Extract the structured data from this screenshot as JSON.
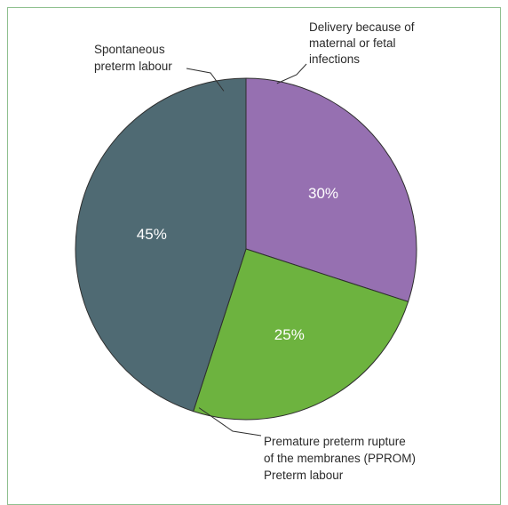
{
  "chart_data": {
    "type": "pie",
    "title": "",
    "slices": [
      {
        "label": "Delivery because of maternal or fetal infections",
        "value": 30,
        "value_label": "30%",
        "color": "#9670b1"
      },
      {
        "label": "Premature preterm rupture of the membranes (PPROM) Preterm labour",
        "value": 25,
        "value_label": "25%",
        "color": "#6db33f"
      },
      {
        "label": "Spontaneous preterm labour",
        "value": 45,
        "value_label": "45%",
        "color": "#4f6a73"
      }
    ],
    "annotations": [
      {
        "lines": [
          "Delivery because of",
          "maternal or fetal",
          "infections"
        ]
      },
      {
        "lines": [
          "Premature preterm rupture",
          "of the membranes (PPROM)",
          "Preterm labour"
        ]
      },
      {
        "lines": [
          "Spontaneous",
          "preterm labour"
        ]
      }
    ],
    "legend": "none",
    "start_angle": "12 o'clock",
    "direction": "clockwise",
    "border_color": "#8fc08f"
  }
}
